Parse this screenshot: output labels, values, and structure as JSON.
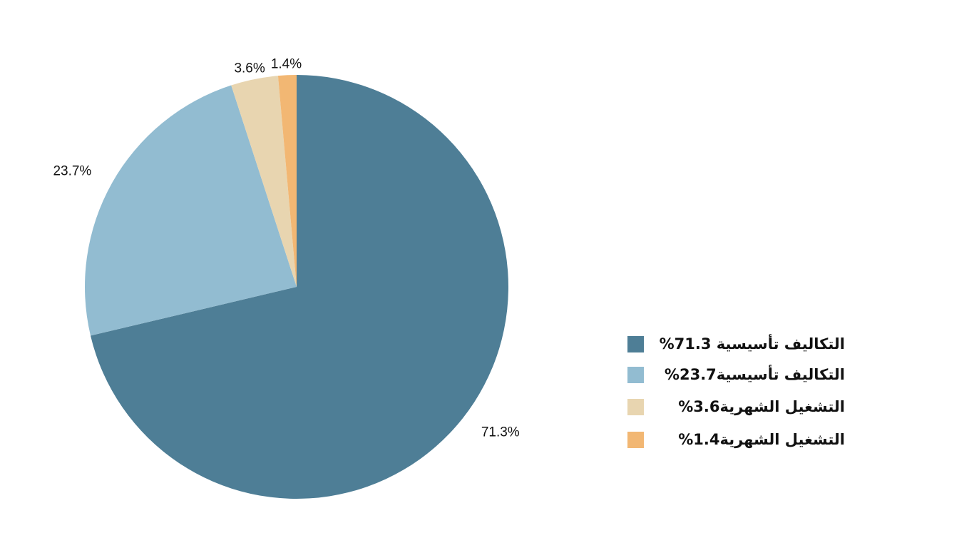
{
  "chart_data": {
    "type": "pie",
    "categories": [
      "التكاليف تأسيسية 71.3%",
      "التكاليف تأسيسية23.7%",
      "التشغيل الشهرية3.6%",
      "التشغيل الشهرية1.4%"
    ],
    "values": [
      71.3,
      23.7,
      3.6,
      1.4
    ],
    "value_labels": [
      "71.3%",
      "23.7%",
      "3.6%",
      "1.4%"
    ],
    "colors": [
      "#4e7e96",
      "#92bcd1",
      "#e8d5b0",
      "#f2b773"
    ],
    "legend": "right"
  }
}
